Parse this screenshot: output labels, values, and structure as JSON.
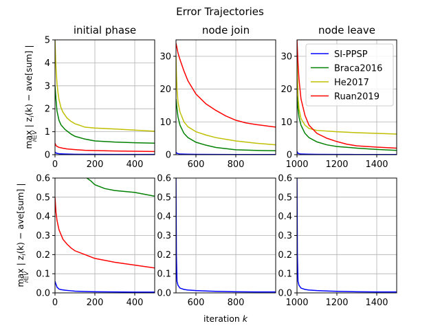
{
  "figure_title": "Error Trajectories",
  "ylabel_main": "| z",
  "ylabel_tail": "(k) − ave[sum] |",
  "ylabel_max": "max",
  "ylabel_sub_i": "i",
  "ylabel_sub_iv": "i∈V",
  "xlabel_text": "iteration ",
  "xlabel_var": "k",
  "colors": {
    "SI-PPSP": "#0000ff",
    "Braca2016": "#008000",
    "He2017": "#bfbf00",
    "Ruan2019": "#ff0000",
    "grid": "#b0b0b0"
  },
  "chart_data": [
    {
      "type": "line",
      "title": "initial phase",
      "row": 0,
      "col": 0,
      "xlim": [
        0,
        500
      ],
      "ylim": [
        0,
        5
      ],
      "xticks": [
        0,
        200,
        400
      ],
      "yticks": [
        0,
        1,
        2,
        3,
        4,
        5
      ],
      "grid": true,
      "series": [
        {
          "name": "SI-PPSP",
          "x": [
            0,
            5,
            20,
            50,
            100,
            200,
            300,
            400,
            500
          ],
          "y": [
            0.12,
            0.07,
            0.04,
            0.03,
            0.02,
            0.015,
            0.012,
            0.01,
            0.01
          ]
        },
        {
          "name": "Braca2016",
          "x": [
            0,
            5,
            10,
            20,
            30,
            50,
            80,
            100,
            150,
            200,
            300,
            400,
            500
          ],
          "y": [
            3.0,
            2.4,
            1.9,
            1.5,
            1.3,
            1.1,
            0.9,
            0.8,
            0.68,
            0.6,
            0.55,
            0.52,
            0.5
          ]
        },
        {
          "name": "He2017",
          "x": [
            0,
            3,
            6,
            10,
            15,
            20,
            30,
            40,
            60,
            80,
            100,
            150,
            200,
            300,
            400,
            500
          ],
          "y": [
            5.0,
            4.2,
            3.6,
            3.1,
            2.7,
            2.4,
            2.05,
            1.85,
            1.6,
            1.45,
            1.35,
            1.2,
            1.16,
            1.12,
            1.07,
            1.02
          ]
        },
        {
          "name": "Ruan2019",
          "x": [
            0,
            5,
            10,
            20,
            40,
            60,
            100,
            150,
            200,
            300,
            400,
            500
          ],
          "y": [
            0.5,
            0.4,
            0.36,
            0.32,
            0.28,
            0.25,
            0.22,
            0.19,
            0.18,
            0.16,
            0.15,
            0.14
          ]
        }
      ]
    },
    {
      "type": "line",
      "title": "node join",
      "row": 0,
      "col": 1,
      "xlim": [
        500,
        1000
      ],
      "ylim": [
        0,
        35
      ],
      "xticks": [
        600,
        800
      ],
      "yticks": [
        0,
        10,
        20,
        30
      ],
      "grid": true,
      "series": [
        {
          "name": "SI-PPSP",
          "x": [
            500,
            505,
            520,
            550,
            600,
            700,
            800,
            900,
            1000
          ],
          "y": [
            0.8,
            0.4,
            0.2,
            0.15,
            0.1,
            0.08,
            0.06,
            0.05,
            0.05
          ]
        },
        {
          "name": "Braca2016",
          "x": [
            500,
            505,
            510,
            520,
            540,
            560,
            600,
            650,
            700,
            800,
            900,
            1000
          ],
          "y": [
            17,
            14,
            11.5,
            9.0,
            6.5,
            5.2,
            3.8,
            2.9,
            2.2,
            1.5,
            1.3,
            1.2
          ]
        },
        {
          "name": "He2017",
          "x": [
            500,
            502,
            505,
            510,
            520,
            540,
            560,
            600,
            650,
            700,
            800,
            900,
            1000
          ],
          "y": [
            30,
            25,
            20,
            16,
            13,
            10,
            8.5,
            7.0,
            6.0,
            5.2,
            4.2,
            3.5,
            3.0
          ]
        },
        {
          "name": "Ruan2019",
          "x": [
            500,
            510,
            520,
            540,
            560,
            600,
            650,
            700,
            750,
            800,
            850,
            900,
            950,
            1000
          ],
          "y": [
            34,
            31,
            29,
            25.5,
            22.5,
            18.5,
            15.5,
            13.5,
            11.8,
            10.5,
            9.7,
            9.2,
            8.8,
            8.4
          ]
        }
      ]
    },
    {
      "type": "line",
      "title": "node leave",
      "row": 0,
      "col": 2,
      "xlim": [
        1000,
        1500
      ],
      "ylim": [
        0,
        35
      ],
      "xticks": [
        1000,
        1200,
        1400
      ],
      "yticks": [
        0,
        10,
        20,
        30
      ],
      "grid": true,
      "legend": "top-right",
      "series": [
        {
          "name": "SI-PPSP",
          "x": [
            1000,
            1005,
            1020,
            1050,
            1100,
            1200,
            1300,
            1400,
            1500
          ],
          "y": [
            1.0,
            0.4,
            0.2,
            0.15,
            0.1,
            0.08,
            0.06,
            0.05,
            0.05
          ]
        },
        {
          "name": "Braca2016",
          "x": [
            1000,
            1005,
            1010,
            1020,
            1040,
            1060,
            1100,
            1150,
            1200,
            1300,
            1400,
            1500
          ],
          "y": [
            18,
            14,
            11.5,
            9.0,
            6.5,
            5.2,
            3.9,
            3.0,
            2.5,
            2.0,
            1.6,
            1.3
          ]
        },
        {
          "name": "He2017",
          "x": [
            1000,
            1002,
            1005,
            1010,
            1020,
            1040,
            1060,
            1080,
            1100,
            1200,
            1300,
            1400,
            1500
          ],
          "y": [
            30,
            24,
            18,
            14,
            11,
            9.0,
            8.0,
            7.7,
            7.4,
            7.0,
            6.7,
            6.5,
            6.3
          ]
        },
        {
          "name": "Ruan2019",
          "x": [
            1000,
            1005,
            1010,
            1020,
            1040,
            1060,
            1100,
            1150,
            1200,
            1250,
            1300,
            1400,
            1500
          ],
          "y": [
            35,
            28,
            23,
            17,
            12,
            9.0,
            6.5,
            5.0,
            4.0,
            3.2,
            2.7,
            2.3,
            2.0
          ]
        }
      ]
    },
    {
      "type": "line",
      "title": "",
      "row": 1,
      "col": 0,
      "xlim": [
        0,
        500
      ],
      "ylim": [
        0,
        0.6
      ],
      "xticks": [
        0,
        200,
        400
      ],
      "yticks": [
        0.0,
        0.1,
        0.2,
        0.3,
        0.4,
        0.5,
        0.6
      ],
      "grid": true,
      "series": [
        {
          "name": "SI-PPSP",
          "x": [
            0,
            5,
            10,
            20,
            30,
            50,
            80,
            100,
            150,
            200,
            300,
            400,
            500
          ],
          "y": [
            0.06,
            0.045,
            0.03,
            0.02,
            0.017,
            0.014,
            0.011,
            0.009,
            0.007,
            0.006,
            0.005,
            0.004,
            0.004
          ]
        },
        {
          "name": "Braca2016",
          "x": [
            160,
            180,
            200,
            250,
            300,
            350,
            400,
            450,
            500
          ],
          "y": [
            0.6,
            0.585,
            0.565,
            0.545,
            0.535,
            0.53,
            0.525,
            0.515,
            0.505
          ]
        },
        {
          "name": "Ruan2019",
          "x": [
            0,
            5,
            10,
            20,
            40,
            60,
            80,
            100,
            150,
            200,
            300,
            400,
            500
          ],
          "y": [
            0.5,
            0.42,
            0.38,
            0.33,
            0.28,
            0.255,
            0.235,
            0.22,
            0.2,
            0.18,
            0.16,
            0.145,
            0.13
          ]
        }
      ]
    },
    {
      "type": "line",
      "title": "",
      "row": 1,
      "col": 1,
      "xlim": [
        500,
        1000
      ],
      "ylim": [
        0,
        0.6
      ],
      "xticks": [
        600,
        800
      ],
      "yticks": [
        0.0,
        0.1,
        0.2,
        0.3,
        0.4,
        0.5,
        0.6
      ],
      "grid": true,
      "series": [
        {
          "name": "SI-PPSP",
          "x": [
            500,
            502,
            505,
            510,
            520,
            540,
            560,
            600,
            650,
            700,
            800,
            900,
            1000
          ],
          "y": [
            0.6,
            0.2,
            0.06,
            0.04,
            0.025,
            0.018,
            0.015,
            0.012,
            0.01,
            0.008,
            0.006,
            0.005,
            0.005
          ]
        }
      ]
    },
    {
      "type": "line",
      "title": "",
      "row": 1,
      "col": 2,
      "xlim": [
        1000,
        1500
      ],
      "ylim": [
        0,
        0.6
      ],
      "xticks": [
        1000,
        1200,
        1400
      ],
      "yticks": [
        0.0,
        0.1,
        0.2,
        0.3,
        0.4,
        0.5,
        0.6
      ],
      "grid": true,
      "series": [
        {
          "name": "SI-PPSP",
          "x": [
            1000,
            1002,
            1005,
            1010,
            1020,
            1040,
            1060,
            1100,
            1150,
            1200,
            1300,
            1400,
            1500
          ],
          "y": [
            0.6,
            0.2,
            0.06,
            0.04,
            0.025,
            0.018,
            0.015,
            0.012,
            0.01,
            0.008,
            0.006,
            0.005,
            0.005
          ]
        }
      ]
    }
  ]
}
